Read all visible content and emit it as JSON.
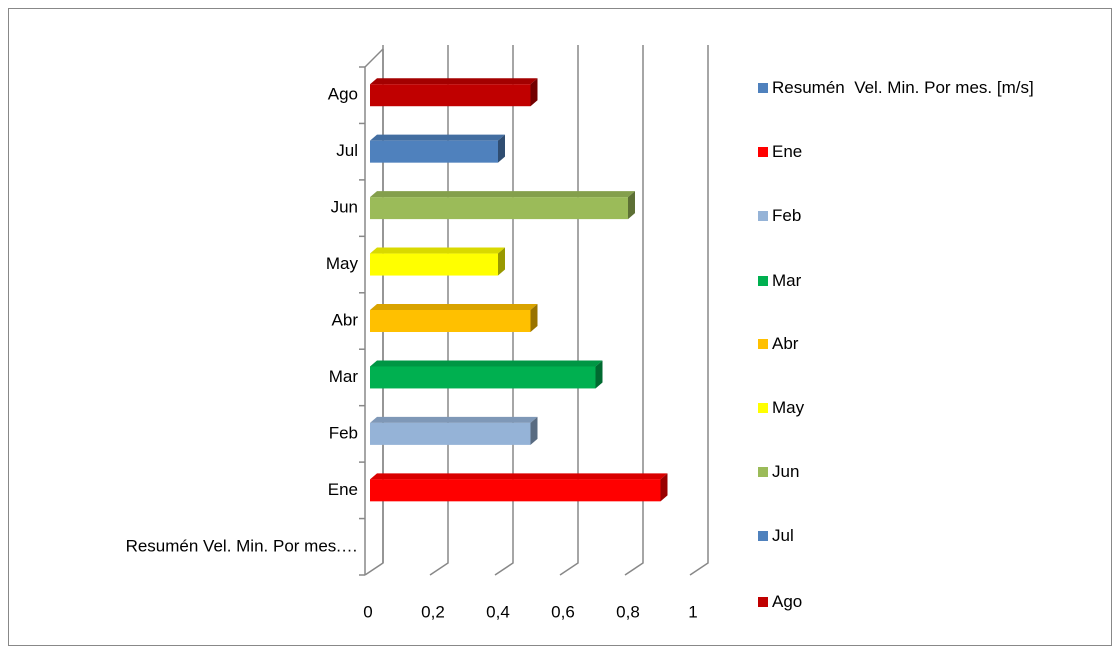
{
  "chart_data": {
    "type": "bar3d-horizontal",
    "categories": [
      "Resumén  Vel. Min. Por mes.…",
      "Ene",
      "Feb",
      "Mar",
      "Abr",
      "May",
      "Jun",
      "Jul",
      "Ago"
    ],
    "values": [
      null,
      0.9,
      0.5,
      0.7,
      0.5,
      0.4,
      0.8,
      0.4,
      0.5
    ],
    "colors": [
      "#4f81bd",
      "#ff0000",
      "#95b3d7",
      "#00b050",
      "#ffc000",
      "#ffff00",
      "#9bbb59",
      "#4f81bd",
      "#c00000"
    ],
    "legend": [
      {
        "name": "Resumén  Vel. Min. Por mes. [m/s]",
        "color": "#4f81bd"
      },
      {
        "name": "Ene",
        "color": "#ff0000"
      },
      {
        "name": "Feb",
        "color": "#95b3d7"
      },
      {
        "name": "Mar",
        "color": "#00b050"
      },
      {
        "name": "Abr",
        "color": "#ffc000"
      },
      {
        "name": "May",
        "color": "#ffff00"
      },
      {
        "name": "Jun",
        "color": "#9bbb59"
      },
      {
        "name": "Jul",
        "color": "#4f81bd"
      },
      {
        "name": "Ago",
        "color": "#c00000"
      }
    ],
    "xlim": [
      0,
      1
    ],
    "xticks": [
      0,
      {
        "value": 0.2,
        "label": "0,2"
      },
      {
        "value": 0.4,
        "label": "0,4"
      },
      {
        "value": 0.6,
        "label": "0,6"
      },
      {
        "value": 0.8,
        "label": "0,8"
      },
      1
    ],
    "grid": true
  }
}
